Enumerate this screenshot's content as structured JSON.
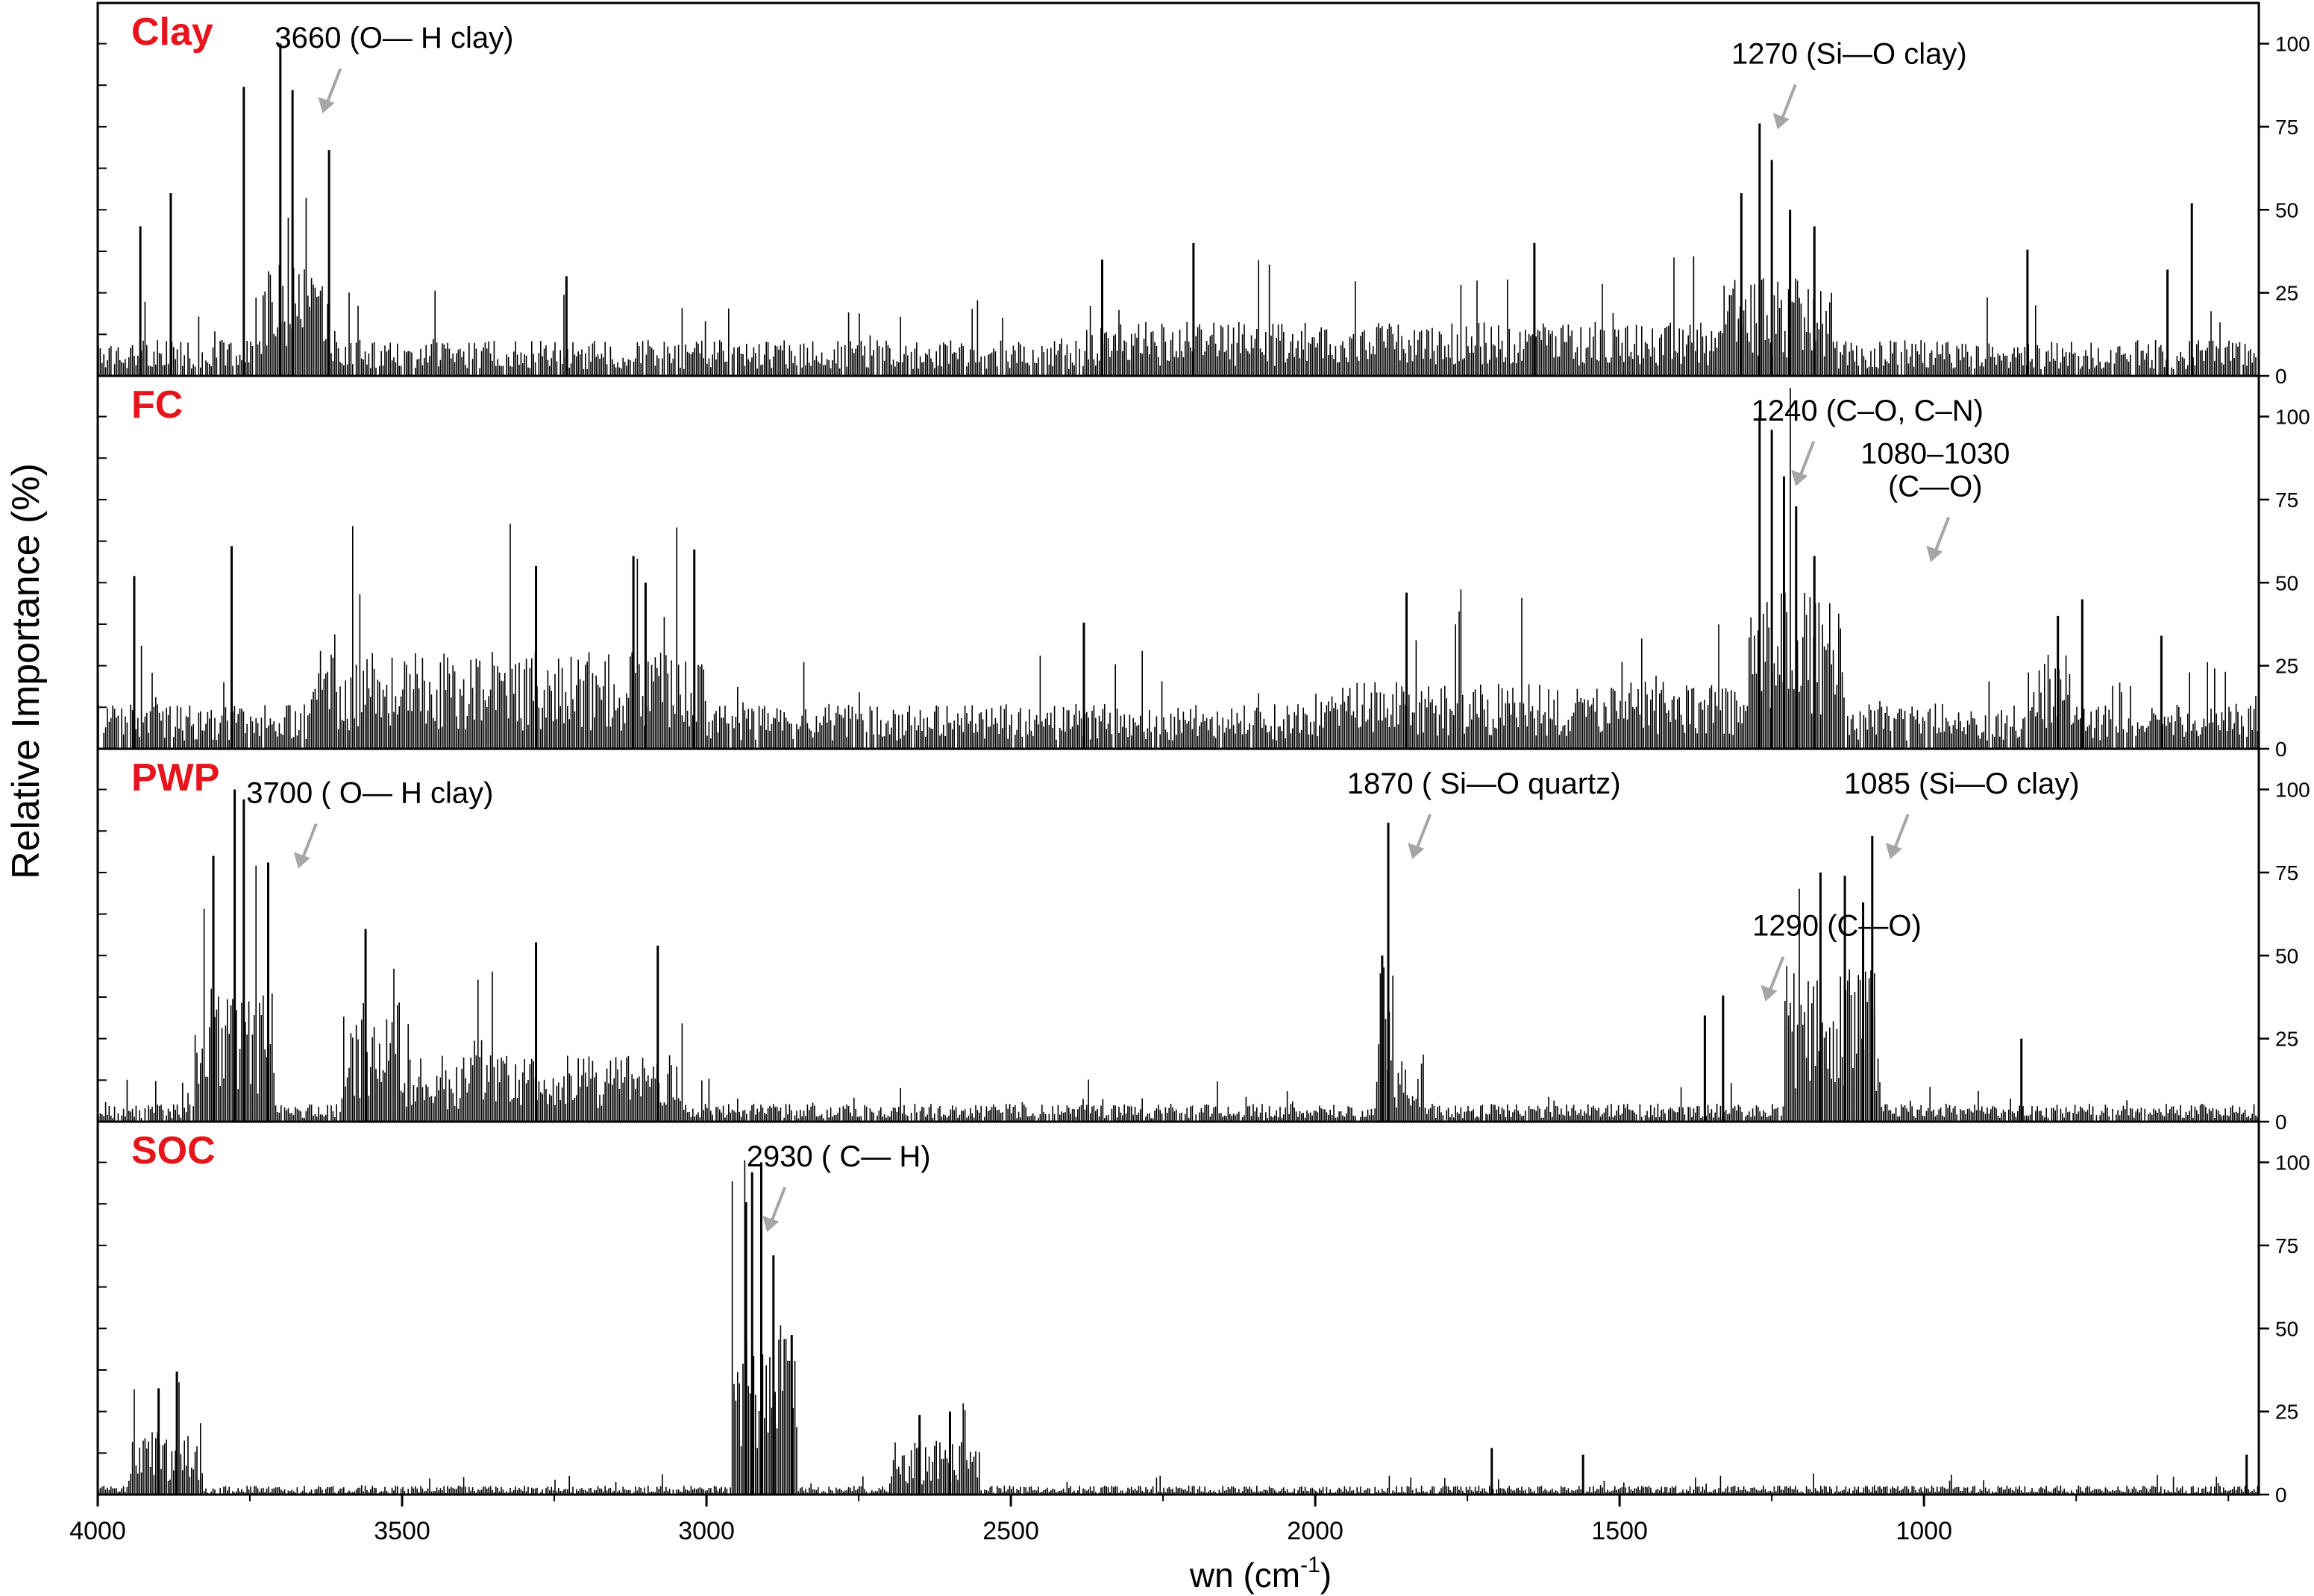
{
  "chart_data": {
    "type": "bar",
    "xlabel": "wn (cm",
    "xlabel_sup": "-1",
    "xlabel_suffix": ")",
    "ylabel": "Relative Importance (%)",
    "xlim": [
      4000,
      450
    ],
    "xticks": [
      4000,
      3500,
      3000,
      2500,
      2000,
      1500,
      1000
    ],
    "ylim": [
      0,
      110
    ],
    "yticks": [
      0,
      25,
      50,
      75,
      100
    ],
    "colors": {
      "bars": "#000000",
      "panel_label": "#e8141b",
      "arrow": "#a6a6a6",
      "axis": "#000000"
    },
    "panels": [
      {
        "name": "Clay",
        "baseline_level": 8,
        "annotations": [
          {
            "lines": [
              "3660 (O— H clay)"
            ],
            "wn": 3660
          },
          {
            "lines": [
              "1270 (Si—O clay)"
            ],
            "wn": 1270
          }
        ],
        "peaks": [
          {
            "wn": 3700,
            "value": 100
          },
          {
            "wn": 3760,
            "value": 87
          },
          {
            "wn": 3680,
            "value": 86
          },
          {
            "wn": 3620,
            "value": 68
          },
          {
            "wn": 3880,
            "value": 55
          },
          {
            "wn": 3930,
            "value": 45
          },
          {
            "wn": 3230,
            "value": 30
          },
          {
            "wn": 2350,
            "value": 35
          },
          {
            "wn": 2200,
            "value": 40
          },
          {
            "wn": 1640,
            "value": 40
          },
          {
            "wn": 1300,
            "value": 55
          },
          {
            "wn": 1270,
            "value": 76
          },
          {
            "wn": 1250,
            "value": 65
          },
          {
            "wn": 1220,
            "value": 50
          },
          {
            "wn": 1180,
            "value": 45
          },
          {
            "wn": 830,
            "value": 38
          },
          {
            "wn": 560,
            "value": 52
          },
          {
            "wn": 600,
            "value": 32
          }
        ],
        "regions": [
          {
            "from": 3740,
            "to": 3620,
            "level": 25
          },
          {
            "from": 1340,
            "to": 1150,
            "level": 22
          },
          {
            "from": 2380,
            "to": 1300,
            "level": 12
          }
        ]
      },
      {
        "name": "FC",
        "baseline_level": 10,
        "annotations": [
          {
            "lines": [
              "1240 (C–O, C–N)"
            ],
            "wn": 1240
          },
          {
            "lines": [
              "1080–1030",
              "(C—O)"
            ],
            "wn": 1055
          }
        ],
        "peaks": [
          {
            "wn": 3780,
            "value": 61
          },
          {
            "wn": 3940,
            "value": 52
          },
          {
            "wn": 3280,
            "value": 55
          },
          {
            "wn": 3120,
            "value": 58
          },
          {
            "wn": 3020,
            "value": 60
          },
          {
            "wn": 3100,
            "value": 50
          },
          {
            "wn": 2380,
            "value": 38
          },
          {
            "wn": 1850,
            "value": 47
          },
          {
            "wn": 1270,
            "value": 100
          },
          {
            "wn": 1250,
            "value": 96
          },
          {
            "wn": 1230,
            "value": 82
          },
          {
            "wn": 1210,
            "value": 73
          },
          {
            "wn": 1180,
            "value": 58
          },
          {
            "wn": 780,
            "value": 40
          },
          {
            "wn": 740,
            "value": 45
          },
          {
            "wn": 610,
            "value": 34
          }
        ],
        "regions": [
          {
            "from": 3650,
            "to": 3000,
            "level": 22
          },
          {
            "from": 1290,
            "to": 1130,
            "level": 35
          },
          {
            "from": 2000,
            "to": 1300,
            "level": 15
          },
          {
            "from": 830,
            "to": 760,
            "level": 22
          }
        ]
      },
      {
        "name": "PWP",
        "baseline_level": 4,
        "annotations": [
          {
            "lines": [
              "3700 ( O— H clay)"
            ],
            "wn": 3700
          },
          {
            "lines": [
              "1870 ( Si—O quartz)"
            ],
            "wn": 1870
          },
          {
            "lines": [
              "1290 (C—O)"
            ],
            "wn": 1290
          },
          {
            "lines": [
              "1085 (Si—O clay)"
            ],
            "wn": 1085
          }
        ],
        "peaks": [
          {
            "wn": 3775,
            "value": 100
          },
          {
            "wn": 3760,
            "value": 97
          },
          {
            "wn": 3810,
            "value": 80
          },
          {
            "wn": 3720,
            "value": 78
          },
          {
            "wn": 3560,
            "value": 58
          },
          {
            "wn": 3280,
            "value": 54
          },
          {
            "wn": 3080,
            "value": 53
          },
          {
            "wn": 1880,
            "value": 90
          },
          {
            "wn": 1890,
            "value": 50
          },
          {
            "wn": 1330,
            "value": 38
          },
          {
            "wn": 1360,
            "value": 32
          },
          {
            "wn": 1170,
            "value": 75
          },
          {
            "wn": 1130,
            "value": 74
          },
          {
            "wn": 1085,
            "value": 86
          },
          {
            "wn": 1100,
            "value": 66
          },
          {
            "wn": 840,
            "value": 25
          }
        ],
        "regions": [
          {
            "from": 3840,
            "to": 3710,
            "level": 30
          },
          {
            "from": 3600,
            "to": 3500,
            "level": 28
          },
          {
            "from": 3500,
            "to": 3040,
            "level": 15
          },
          {
            "from": 1900,
            "to": 1870,
            "level": 35
          },
          {
            "from": 1870,
            "to": 1820,
            "level": 15
          },
          {
            "from": 1230,
            "to": 1070,
            "level": 35
          }
        ]
      },
      {
        "name": "SOC",
        "baseline_level": 2,
        "annotations": [
          {
            "lines": [
              "2930 ( C— H)"
            ],
            "wn": 2930
          }
        ],
        "peaks": [
          {
            "wn": 2910,
            "value": 100
          },
          {
            "wn": 2925,
            "value": 97
          },
          {
            "wn": 2935,
            "value": 88
          },
          {
            "wn": 2890,
            "value": 72
          },
          {
            "wn": 2860,
            "value": 48
          },
          {
            "wn": 3870,
            "value": 37
          },
          {
            "wn": 3900,
            "value": 32
          },
          {
            "wn": 2600,
            "value": 25
          },
          {
            "wn": 2650,
            "value": 24
          },
          {
            "wn": 1710,
            "value": 14
          },
          {
            "wn": 1560,
            "value": 12
          },
          {
            "wn": 470,
            "value": 12
          }
        ],
        "regions": [
          {
            "from": 3950,
            "to": 3830,
            "level": 14
          },
          {
            "from": 2960,
            "to": 2850,
            "level": 38
          },
          {
            "from": 2700,
            "to": 2550,
            "level": 12
          }
        ]
      }
    ]
  }
}
